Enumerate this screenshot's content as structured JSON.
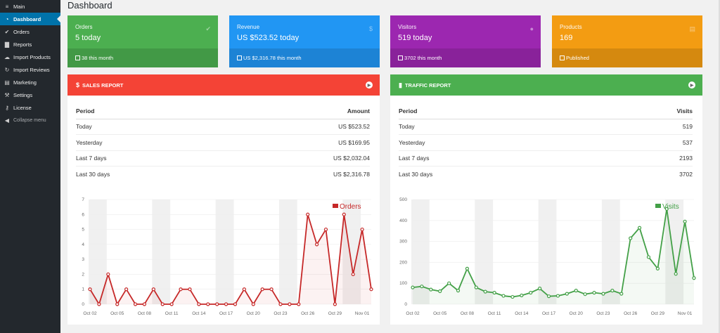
{
  "sidebar": {
    "items": [
      {
        "label": "Main",
        "icon": "menu-icon"
      },
      {
        "label": "Dashboard",
        "icon": "dashboard-icon",
        "active": true
      },
      {
        "label": "Orders",
        "icon": "check-icon"
      },
      {
        "label": "Reports",
        "icon": "bar-chart-icon"
      },
      {
        "label": "Import Products",
        "icon": "cloud-icon"
      },
      {
        "label": "Import Reviews",
        "icon": "refresh-icon"
      },
      {
        "label": "Marketing",
        "icon": "cart-icon"
      },
      {
        "label": "Settings",
        "icon": "wrench-icon"
      },
      {
        "label": "License",
        "icon": "key-icon"
      },
      {
        "label": "Collapse menu",
        "icon": "collapse-icon"
      }
    ]
  },
  "page": {
    "title": "Dashboard"
  },
  "cards": [
    {
      "label": "Orders",
      "value": "5 today",
      "footer": "38 this month",
      "color": "#4caf50",
      "icon": "check-icon"
    },
    {
      "label": "Revenue",
      "value": "US $523.52 today",
      "footer": "US $2,316.78 this month",
      "color": "#2196f3",
      "icon": "dollar-icon"
    },
    {
      "label": "Visitors",
      "value": "519 today",
      "footer": "3702 this month",
      "color": "#9c27b0",
      "icon": "user-icon"
    },
    {
      "label": "Products",
      "value": "169",
      "footer": "Published",
      "color": "#f39c12",
      "icon": "cart-icon"
    }
  ],
  "sales": {
    "title": "SALES REPORT",
    "color": "#f44336",
    "col_period": "Period",
    "col_value": "Amount",
    "rows": [
      {
        "period": "Today",
        "value": "US $523.52"
      },
      {
        "period": "Yesterday",
        "value": "US $169.95"
      },
      {
        "period": "Last 7 days",
        "value": "US $2,032.04"
      },
      {
        "period": "Last 30 days",
        "value": "US $2,316.78"
      }
    ]
  },
  "traffic": {
    "title": "TRAFFIC REPORT",
    "color": "#4caf50",
    "col_period": "Period",
    "col_value": "Visits",
    "rows": [
      {
        "period": "Today",
        "value": "519"
      },
      {
        "period": "Yesterday",
        "value": "537"
      },
      {
        "period": "Last 7 days",
        "value": "2193"
      },
      {
        "period": "Last 30 days",
        "value": "3702"
      }
    ]
  },
  "chart_data": [
    {
      "type": "line",
      "legend": "Orders",
      "color": "#c62828",
      "ylim": [
        0,
        7
      ],
      "yticks": [
        0,
        1,
        2,
        3,
        4,
        5,
        6,
        7
      ],
      "xticks": [
        "Oct 02",
        "Oct 05",
        "Oct 08",
        "Oct 11",
        "Oct 14",
        "Oct 17",
        "Oct 20",
        "Oct 23",
        "Oct 26",
        "Oct 29",
        "Nov 01"
      ],
      "x_start": "Oct 02",
      "values": [
        1,
        0,
        2,
        0,
        1,
        0,
        0,
        1,
        0,
        0,
        1,
        1,
        0,
        0,
        0,
        0,
        0,
        1,
        0,
        1,
        1,
        0,
        0,
        0,
        6,
        4,
        5,
        0,
        6,
        2,
        5,
        1
      ]
    },
    {
      "type": "line",
      "legend": "Visits",
      "color": "#43a047",
      "ylim": [
        0,
        500
      ],
      "yticks": [
        0,
        100,
        200,
        300,
        400,
        500
      ],
      "xticks": [
        "Oct 02",
        "Oct 05",
        "Oct 08",
        "Oct 11",
        "Oct 14",
        "Oct 17",
        "Oct 20",
        "Oct 23",
        "Oct 26",
        "Oct 29",
        "Nov 01"
      ],
      "x_start": "Oct 02",
      "values": [
        80,
        85,
        70,
        62,
        100,
        65,
        170,
        80,
        60,
        55,
        40,
        35,
        42,
        55,
        75,
        38,
        40,
        50,
        65,
        48,
        55,
        50,
        65,
        50,
        315,
        365,
        225,
        170,
        455,
        145,
        395,
        125
      ]
    }
  ]
}
